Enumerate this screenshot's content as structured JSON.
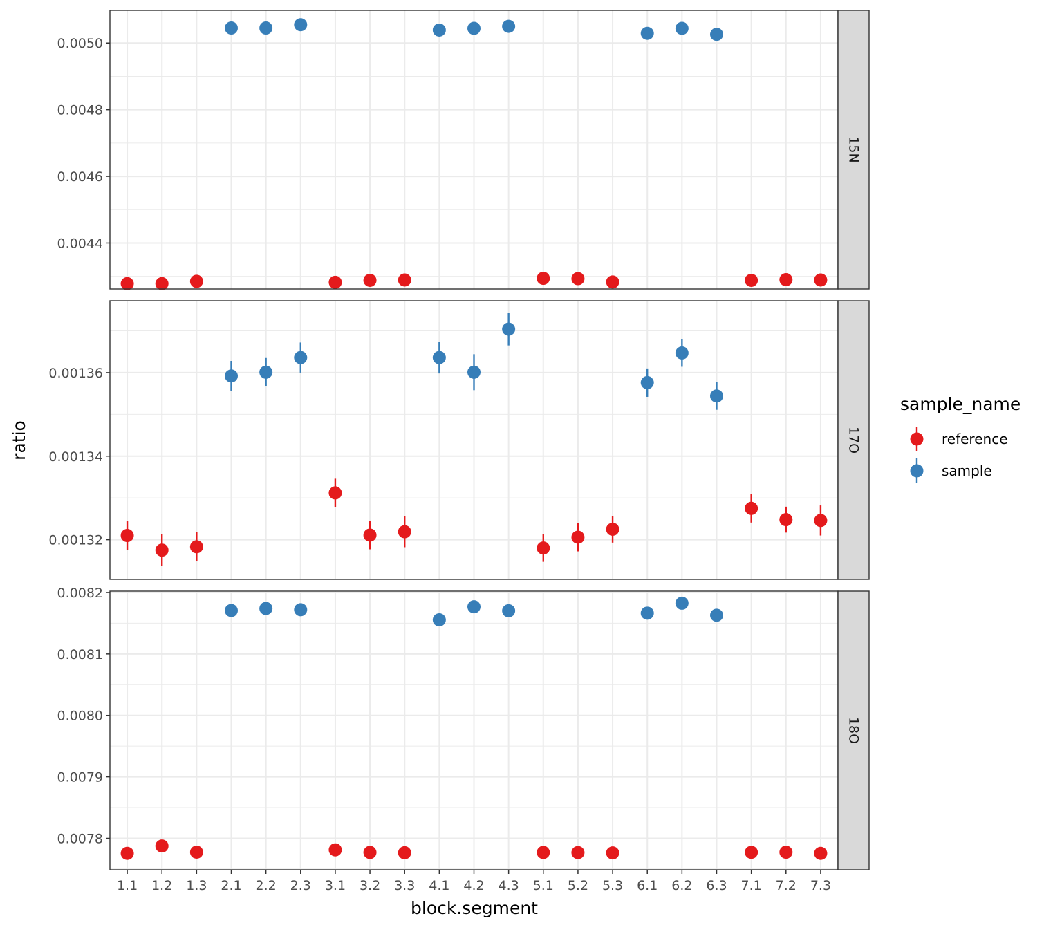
{
  "chart_data": {
    "type": "scatter",
    "subtype": "faceted point-range",
    "xlabel": "block.segment",
    "ylabel": "ratio",
    "categories": [
      "1.1",
      "1.2",
      "1.3",
      "2.1",
      "2.2",
      "2.3",
      "3.1",
      "3.2",
      "3.3",
      "4.1",
      "4.2",
      "4.3",
      "5.1",
      "5.2",
      "5.3",
      "6.1",
      "6.2",
      "6.3",
      "7.1",
      "7.2",
      "7.3"
    ],
    "legend": {
      "title": "sample_name",
      "position": "right",
      "entries": [
        {
          "name": "reference",
          "color": "#e41a1c"
        },
        {
          "name": "sample",
          "color": "#377eb8"
        }
      ]
    },
    "colors": {
      "reference": "#e41a1c",
      "sample": "#377eb8",
      "strip_background": "#d9d9d9",
      "grid": "#ebebeb",
      "panel_border": "#333333"
    },
    "sample_by_category": [
      "reference",
      "reference",
      "reference",
      "sample",
      "sample",
      "sample",
      "reference",
      "reference",
      "reference",
      "sample",
      "sample",
      "sample",
      "reference",
      "reference",
      "reference",
      "sample",
      "sample",
      "sample",
      "reference",
      "reference",
      "reference"
    ],
    "facets": [
      {
        "label": "15N",
        "ylim": [
          0.004262,
          0.005098
        ],
        "yticks": [
          0.0044,
          0.0046,
          0.0048,
          0.005
        ],
        "yticklabels": [
          "0.0044",
          "0.0046",
          "0.0048",
          "0.0050"
        ],
        "values": [
          0.004278,
          0.004278,
          0.004285,
          0.005045,
          0.005045,
          0.005055,
          0.004282,
          0.004288,
          0.004289,
          0.005039,
          0.005044,
          0.00505,
          0.004294,
          0.004293,
          0.004283,
          0.005029,
          0.005044,
          0.005026,
          0.004288,
          0.00429,
          0.004289
        ],
        "errors": [
          1.5e-06,
          1.5e-06,
          1.5e-06,
          1.5e-06,
          1.5e-06,
          1.5e-06,
          1.5e-06,
          1.5e-06,
          1.5e-06,
          1.5e-06,
          1.5e-06,
          1.5e-06,
          1.5e-06,
          1.5e-06,
          1.5e-06,
          1.5e-06,
          1.5e-06,
          1.5e-06,
          1.5e-06,
          1.5e-06,
          1.5e-06
        ]
      },
      {
        "label": "17O",
        "ylim": [
          0.0013105,
          0.0013772
        ],
        "yticks": [
          0.00132,
          0.00134,
          0.00136
        ],
        "yticklabels": [
          "0.00132",
          "0.00134",
          "0.00136"
        ],
        "values": [
          0.001321,
          0.0013175,
          0.0013183,
          0.0013592,
          0.0013601,
          0.0013636,
          0.0013312,
          0.0013211,
          0.0013219,
          0.0013636,
          0.0013601,
          0.0013704,
          0.001318,
          0.0013206,
          0.0013225,
          0.0013576,
          0.0013647,
          0.0013544,
          0.0013275,
          0.0013248,
          0.0013246
        ],
        "errors": [
          3.4e-06,
          3.8e-06,
          3.5e-06,
          3.6e-06,
          3.4e-06,
          3.6e-06,
          3.4e-06,
          3.4e-06,
          3.7e-06,
          3.8e-06,
          4.3e-06,
          3.9e-06,
          3.3e-06,
          3.4e-06,
          3.2e-06,
          3.4e-06,
          3.3e-06,
          3.3e-06,
          3.4e-06,
          3.1e-06,
          3.6e-06
        ]
      },
      {
        "label": "18O",
        "ylim": [
          0.0077488,
          0.0082022
        ],
        "yticks": [
          0.0078,
          0.0079,
          0.008,
          0.0081,
          0.0082
        ],
        "yticklabels": [
          "0.0078",
          "0.0079",
          "0.0080",
          "0.0081",
          "0.0082"
        ],
        "values": [
          0.0077755,
          0.0077875,
          0.0077775,
          0.0081707,
          0.008174,
          0.008172,
          0.0077812,
          0.007777,
          0.0077765,
          0.0081555,
          0.0081767,
          0.0081703,
          0.007777,
          0.0077768,
          0.0077762,
          0.0081664,
          0.0081826,
          0.008163,
          0.0077772,
          0.0077774,
          0.0077755
        ],
        "errors": [
          8e-07,
          8e-07,
          8e-07,
          8e-07,
          8e-07,
          8e-07,
          8e-07,
          8e-07,
          8e-07,
          8e-07,
          8e-07,
          8e-07,
          8e-07,
          8e-07,
          8e-07,
          8e-07,
          8e-07,
          8e-07,
          8e-07,
          8e-07,
          8e-07
        ]
      }
    ]
  }
}
